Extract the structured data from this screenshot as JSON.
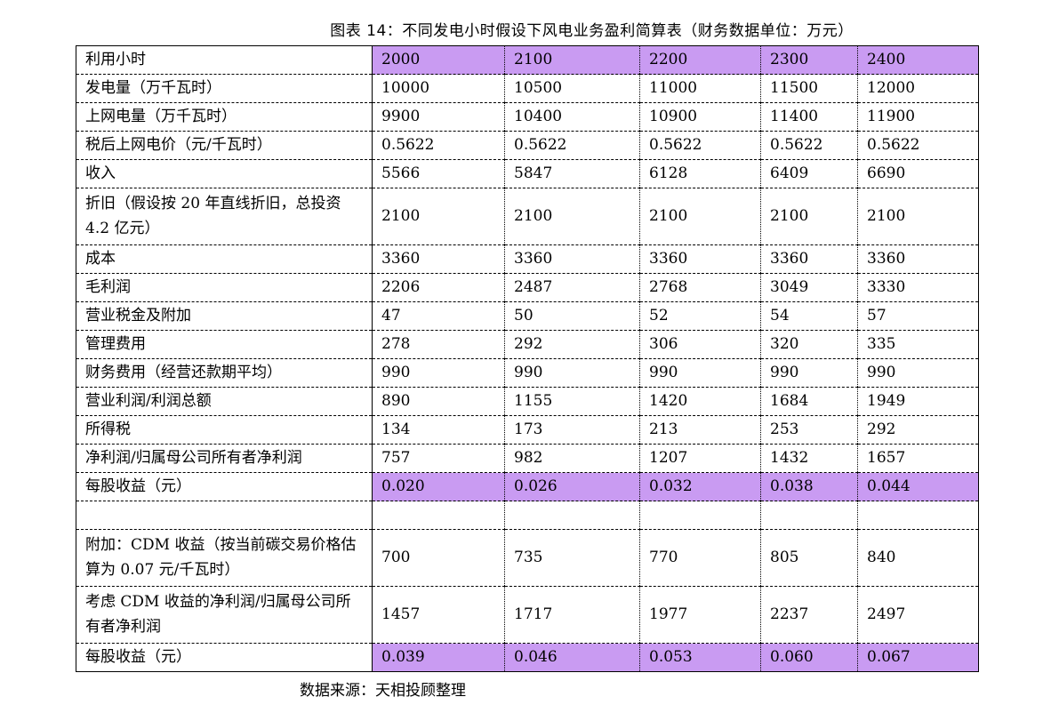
{
  "title": "图表 14：不同发电小时假设下风电业务盈利简算表（财务数据单位：万元）",
  "source": "数据来源：天相投顾整理",
  "highlight_color": "#c99bf2",
  "rows": [
    {
      "label": "利用小时",
      "values": [
        "2000",
        "2100",
        "2200",
        "2300",
        "2400"
      ],
      "highlight": true
    },
    {
      "label": "发电量（万千瓦时）",
      "values": [
        "10000",
        "10500",
        "11000",
        "11500",
        "12000"
      ]
    },
    {
      "label": "上网电量（万千瓦时）",
      "values": [
        "9900",
        "10400",
        "10900",
        "11400",
        "11900"
      ]
    },
    {
      "label": "税后上网电价（元/千瓦时）",
      "values": [
        "0.5622",
        "0.5622",
        "0.5622",
        "0.5622",
        "0.5622"
      ]
    },
    {
      "label": "收入",
      "values": [
        "5566",
        "5847",
        "6128",
        "6409",
        "6690"
      ]
    },
    {
      "label": "折旧（假设按 20 年直线折旧，总投资 4.2 亿元）",
      "values": [
        "2100",
        "2100",
        "2100",
        "2100",
        "2100"
      ],
      "tall": true
    },
    {
      "label": "成本",
      "values": [
        "3360",
        "3360",
        "3360",
        "3360",
        "3360"
      ]
    },
    {
      "label": "毛利润",
      "values": [
        "2206",
        "2487",
        "2768",
        "3049",
        "3330"
      ]
    },
    {
      "label": "营业税金及附加",
      "values": [
        "47",
        "50",
        "52",
        "54",
        "57"
      ]
    },
    {
      "label": "管理费用",
      "values": [
        "278",
        "292",
        "306",
        "320",
        "335"
      ]
    },
    {
      "label": "财务费用（经营还款期平均）",
      "values": [
        "990",
        "990",
        "990",
        "990",
        "990"
      ]
    },
    {
      "label": "营业利润/利润总额",
      "values": [
        "890",
        "1155",
        "1420",
        "1684",
        "1949"
      ]
    },
    {
      "label": "所得税",
      "values": [
        "134",
        "173",
        "213",
        "253",
        "292"
      ]
    },
    {
      "label": "净利润/归属母公司所有者净利润",
      "values": [
        "757",
        "982",
        "1207",
        "1432",
        "1657"
      ]
    },
    {
      "label": "每股收益（元）",
      "values": [
        "0.020",
        "0.026",
        "0.032",
        "0.038",
        "0.044"
      ],
      "highlight": true
    },
    {
      "label": "",
      "values": [
        "",
        "",
        "",
        "",
        ""
      ]
    },
    {
      "label": "附加：CDM 收益（按当前碳交易价格估算为 0.07 元/千瓦时）",
      "values": [
        "700",
        "735",
        "770",
        "805",
        "840"
      ],
      "tall": true
    },
    {
      "label": "考虑 CDM 收益的净利润/归属母公司所有者净利润",
      "values": [
        "1457",
        "1717",
        "1977",
        "2237",
        "2497"
      ],
      "tall": true
    },
    {
      "label": "每股收益（元）",
      "values": [
        "0.039",
        "0.046",
        "0.053",
        "0.060",
        "0.067"
      ],
      "highlight": true
    }
  ]
}
